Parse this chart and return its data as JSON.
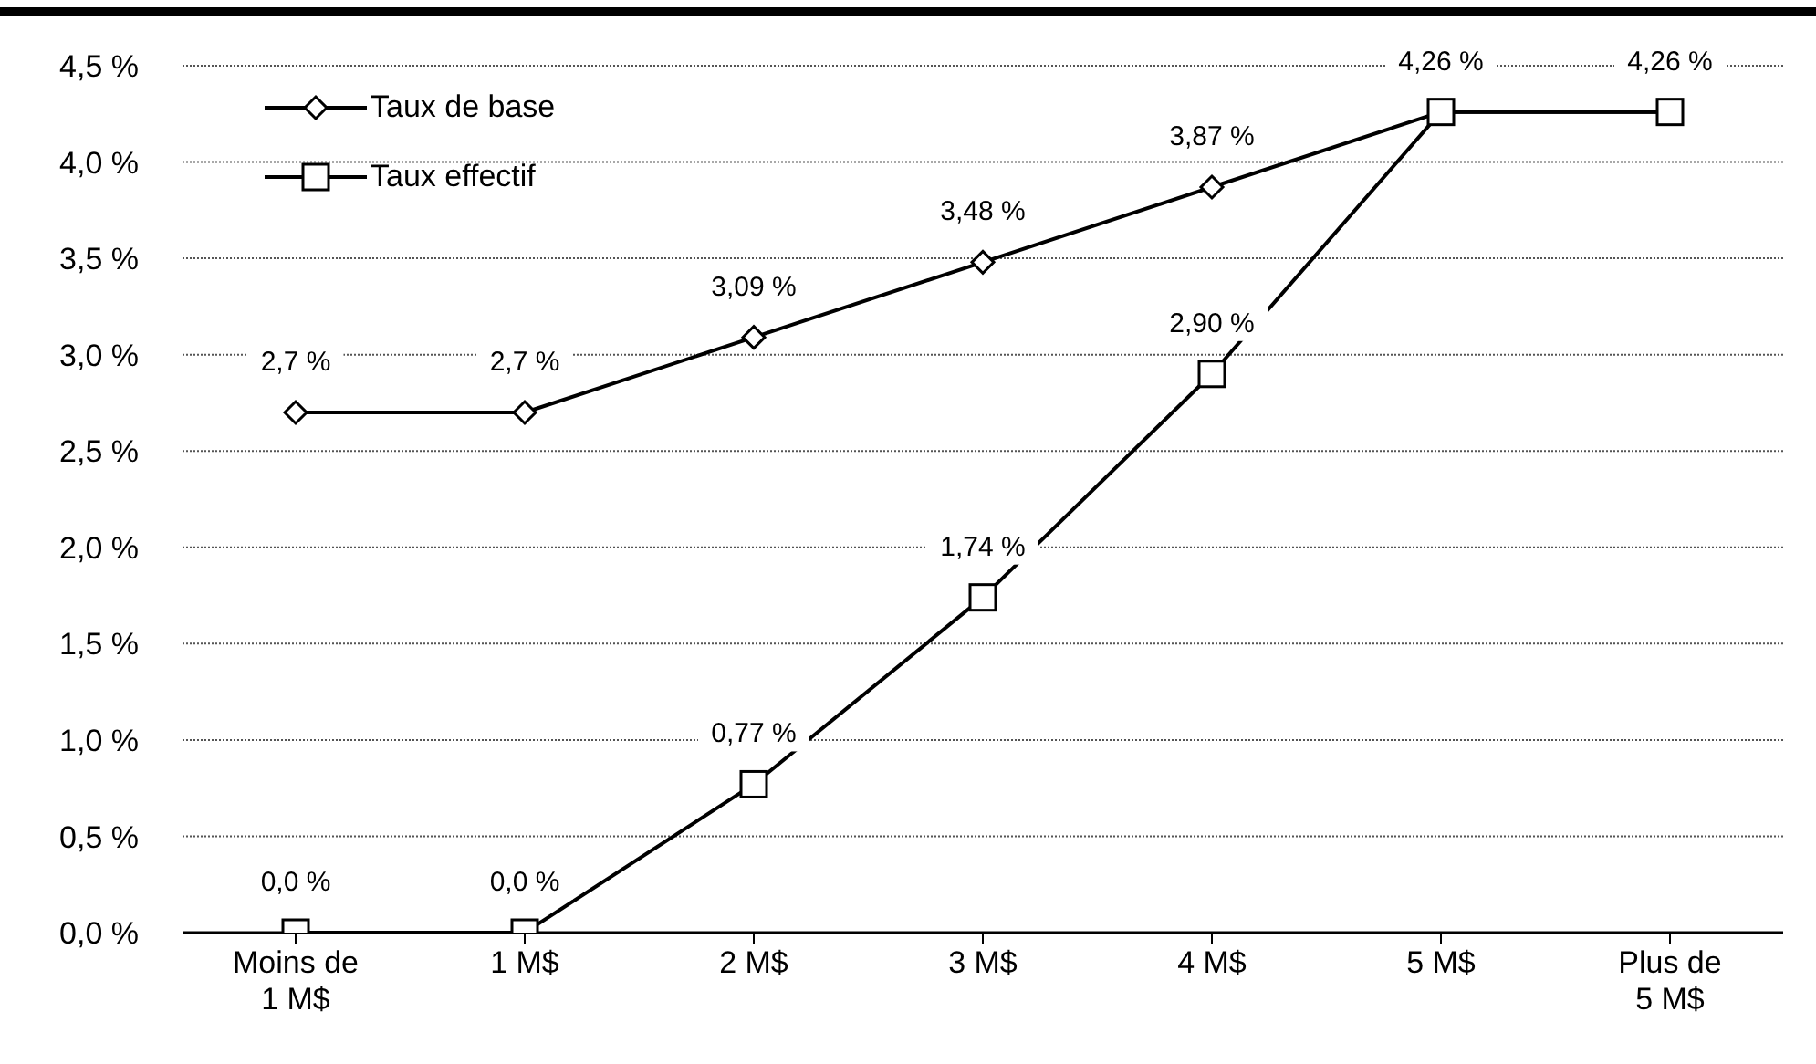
{
  "chart_data": {
    "type": "line",
    "categories": [
      "Moins de\n1 M$",
      "1 M$",
      "2 M$",
      "3 M$",
      "4 M$",
      "5 M$",
      "Plus de\n5 M$"
    ],
    "series": [
      {
        "name": "Taux de base",
        "color": "#000000",
        "marker": "diamond",
        "values": [
          2.7,
          2.7,
          3.09,
          3.48,
          3.87,
          4.26,
          4.26
        ],
        "value_labels": [
          "2,7 %",
          "2,7 %",
          "3,09 %",
          "3,48 %",
          "3,87 %",
          "4,26 %",
          "4,26 %"
        ]
      },
      {
        "name": "Taux effectif",
        "color": "#000000",
        "marker": "square",
        "values": [
          0,
          0,
          0.77,
          1.74,
          2.9,
          4.26,
          4.26
        ],
        "value_labels": [
          "0,0 %",
          "0,0 %",
          "0,77 %",
          "1,74 %",
          "2,90 %",
          null,
          null
        ]
      }
    ],
    "ylim": [
      0,
      4.5
    ],
    "yticks": [
      {
        "value": 0,
        "label": "0,0 %"
      },
      {
        "value": 0.5,
        "label": "0,5 %"
      },
      {
        "value": 1,
        "label": "1,0 %"
      },
      {
        "value": 1.5,
        "label": "1,5 %"
      },
      {
        "value": 2,
        "label": "2,0 %"
      },
      {
        "value": 2.5,
        "label": "2,5 %"
      },
      {
        "value": 3,
        "label": "3,0 %"
      },
      {
        "value": 3.5,
        "label": "3,5 %"
      },
      {
        "value": 4,
        "label": "4,0 %"
      },
      {
        "value": 4.5,
        "label": "4,5 %"
      }
    ],
    "grid": "y",
    "legend": "top left",
    "line_style": "solid"
  }
}
